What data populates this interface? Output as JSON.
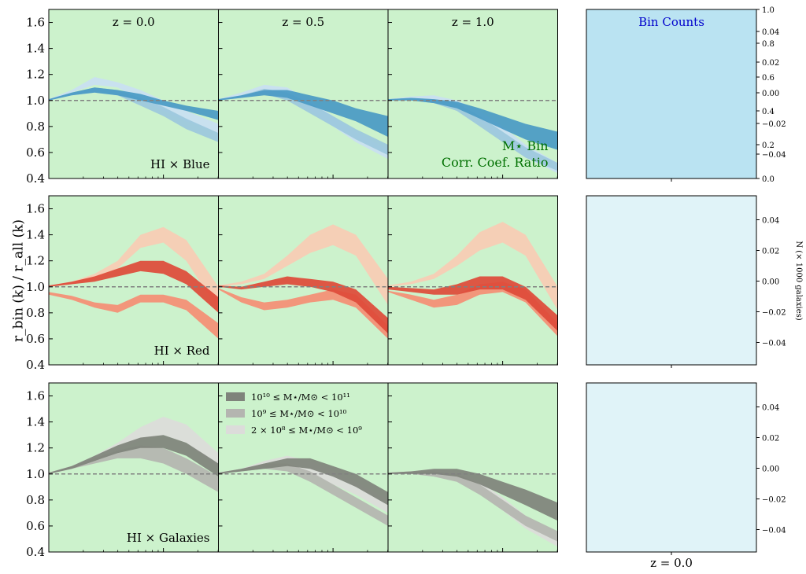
{
  "chart_data": {
    "type": "area",
    "ylabel": "r_bin (k) / r_all (k)",
    "ylim": [
      0.4,
      1.7
    ],
    "yticks": [
      0.4,
      0.6,
      0.8,
      1.0,
      1.2,
      1.4,
      1.6
    ],
    "ytick_labels": [
      "0.4",
      "0.6",
      "0.8",
      "1.0",
      "1.2",
      "1.4",
      "1.6"
    ],
    "xscale": "log",
    "xlim_log10": [
      -1.0,
      0.48
    ],
    "reference_line": 1.0,
    "panel_background": "#ccf2cc",
    "columns": [
      "z = 0.0",
      "z = 0.5",
      "z = 1.0"
    ],
    "annotation_title": "M⋆ Bin",
    "annotation_subtitle": "Corr. Coef. Ratio",
    "annotation_color": "#007000",
    "legend": [
      "10¹⁰ ≤ M⋆/M⊙ < 10¹¹",
      "10⁹ ≤ M⋆/M⊙ < 10¹⁰",
      "2 × 10⁸ ≤ M⋆/M⊙ < 10⁹"
    ],
    "rows": [
      {
        "label": "HI × Blue",
        "colors": [
          "#4a9ac4",
          "#9cc8dd",
          "#c9e0f2"
        ],
        "panels": [
          {
            "x": [
              -1.0,
              -0.8,
              -0.6,
              -0.4,
              -0.2,
              0.0,
              0.2,
              0.48
            ],
            "series": [
              {
                "lo": [
                  1.0,
                  1.04,
                  1.06,
                  1.04,
                  1.0,
                  0.96,
                  0.92,
                  0.85
                ],
                "hi": [
                  1.01,
                  1.06,
                  1.1,
                  1.08,
                  1.05,
                  1.0,
                  0.96,
                  0.92
                ]
              },
              {
                "lo": [
                  1.0,
                  1.04,
                  1.06,
                  1.04,
                  0.96,
                  0.88,
                  0.78,
                  0.68
                ],
                "hi": [
                  1.01,
                  1.06,
                  1.1,
                  1.08,
                  1.02,
                  0.95,
                  0.86,
                  0.75
                ]
              },
              {
                "lo": [
                  1.0,
                  1.06,
                  1.12,
                  1.1,
                  1.0,
                  0.92,
                  0.84,
                  0.75
                ],
                "hi": [
                  1.01,
                  1.08,
                  1.18,
                  1.14,
                  1.08,
                  1.0,
                  0.92,
                  0.82
                ]
              }
            ]
          },
          {
            "x": [
              -1.0,
              -0.8,
              -0.6,
              -0.4,
              -0.2,
              0.0,
              0.2,
              0.48
            ],
            "series": [
              {
                "lo": [
                  1.0,
                  1.02,
                  1.04,
                  1.02,
                  0.96,
                  0.9,
                  0.84,
                  0.72
                ],
                "hi": [
                  1.01,
                  1.04,
                  1.08,
                  1.08,
                  1.04,
                  1.0,
                  0.94,
                  0.88
                ]
              },
              {
                "lo": [
                  1.0,
                  1.02,
                  1.05,
                  1.0,
                  0.9,
                  0.8,
                  0.7,
                  0.58
                ],
                "hi": [
                  1.01,
                  1.04,
                  1.09,
                  1.06,
                  0.98,
                  0.88,
                  0.78,
                  0.66
                ]
              },
              {
                "lo": [
                  1.0,
                  1.04,
                  1.08,
                  1.04,
                  0.92,
                  0.8,
                  0.68,
                  0.55
                ],
                "hi": [
                  1.01,
                  1.06,
                  1.12,
                  1.1,
                  1.0,
                  0.88,
                  0.76,
                  0.62
                ]
              }
            ]
          },
          {
            "x": [
              -1.0,
              -0.8,
              -0.6,
              -0.4,
              -0.2,
              0.0,
              0.2,
              0.48
            ],
            "series": [
              {
                "lo": [
                  1.0,
                  1.0,
                  0.98,
                  0.94,
                  0.86,
                  0.78,
                  0.7,
                  0.62
                ],
                "hi": [
                  1.01,
                  1.02,
                  1.01,
                  0.99,
                  0.94,
                  0.88,
                  0.82,
                  0.76
                ]
              },
              {
                "lo": [
                  1.0,
                  1.0,
                  0.98,
                  0.92,
                  0.8,
                  0.68,
                  0.56,
                  0.46
                ],
                "hi": [
                  1.01,
                  1.02,
                  1.01,
                  0.98,
                  0.88,
                  0.76,
                  0.64,
                  0.52
                ]
              },
              {
                "lo": [
                  1.0,
                  1.01,
                  1.0,
                  0.96,
                  0.84,
                  0.7,
                  0.56,
                  0.44
                ],
                "hi": [
                  1.01,
                  1.03,
                  1.04,
                  1.0,
                  0.92,
                  0.8,
                  0.66,
                  0.52
                ]
              }
            ]
          }
        ]
      },
      {
        "label": "HI × Red",
        "colors": [
          "#de4a38",
          "#f58e74",
          "#f9ccb4"
        ],
        "panels": [
          {
            "x": [
              -1.0,
              -0.8,
              -0.6,
              -0.4,
              -0.2,
              0.0,
              0.2,
              0.48
            ],
            "series": [
              {
                "lo": [
                  1.0,
                  1.02,
                  1.04,
                  1.08,
                  1.12,
                  1.1,
                  1.02,
                  0.8
                ],
                "hi": [
                  1.01,
                  1.04,
                  1.08,
                  1.14,
                  1.2,
                  1.2,
                  1.12,
                  0.92
                ]
              },
              {
                "lo": [
                  0.94,
                  0.9,
                  0.84,
                  0.8,
                  0.88,
                  0.88,
                  0.82,
                  0.6
                ],
                "hi": [
                  0.96,
                  0.93,
                  0.88,
                  0.86,
                  0.94,
                  0.94,
                  0.9,
                  0.72
                ]
              },
              {
                "lo": [
                  1.0,
                  1.02,
                  1.06,
                  1.14,
                  1.3,
                  1.34,
                  1.2,
                  0.82
                ],
                "hi": [
                  1.01,
                  1.04,
                  1.1,
                  1.2,
                  1.4,
                  1.46,
                  1.36,
                  1.0
                ]
              }
            ]
          },
          {
            "x": [
              -1.0,
              -0.8,
              -0.6,
              -0.4,
              -0.2,
              0.0,
              0.2,
              0.48
            ],
            "series": [
              {
                "lo": [
                  1.0,
                  0.98,
                  1.0,
                  1.02,
                  1.0,
                  0.96,
                  0.88,
                  0.64
                ],
                "hi": [
                  1.01,
                  1.0,
                  1.04,
                  1.08,
                  1.06,
                  1.04,
                  0.98,
                  0.76
                ]
              },
              {
                "lo": [
                  0.98,
                  0.88,
                  0.82,
                  0.84,
                  0.88,
                  0.9,
                  0.84,
                  0.6
                ],
                "hi": [
                  0.99,
                  0.92,
                  0.88,
                  0.9,
                  0.94,
                  0.98,
                  0.94,
                  0.7
                ]
              },
              {
                "lo": [
                  1.0,
                  1.02,
                  1.06,
                  1.16,
                  1.26,
                  1.32,
                  1.24,
                  0.86
                ],
                "hi": [
                  1.01,
                  1.04,
                  1.1,
                  1.24,
                  1.4,
                  1.48,
                  1.4,
                  1.06
                ]
              }
            ]
          },
          {
            "x": [
              -1.0,
              -0.8,
              -0.6,
              -0.4,
              -0.2,
              0.0,
              0.2,
              0.48
            ],
            "series": [
              {
                "lo": [
                  0.98,
                  0.96,
                  0.94,
                  0.94,
                  0.98,
                  0.98,
                  0.9,
                  0.66
                ],
                "hi": [
                  1.0,
                  0.99,
                  0.98,
                  1.02,
                  1.08,
                  1.08,
                  1.0,
                  0.78
                ]
              },
              {
                "lo": [
                  0.96,
                  0.9,
                  0.84,
                  0.86,
                  0.94,
                  0.96,
                  0.88,
                  0.62
                ],
                "hi": [
                  0.97,
                  0.94,
                  0.9,
                  0.94,
                  1.02,
                  1.04,
                  0.98,
                  0.72
                ]
              },
              {
                "lo": [
                  1.0,
                  1.02,
                  1.06,
                  1.16,
                  1.28,
                  1.34,
                  1.24,
                  0.82
                ],
                "hi": [
                  1.01,
                  1.04,
                  1.1,
                  1.24,
                  1.42,
                  1.5,
                  1.4,
                  1.0
                ]
              }
            ]
          }
        ]
      },
      {
        "label": "HI × Galaxies",
        "colors": [
          "#7f837b",
          "#b4b5b0",
          "#dcdcda"
        ],
        "panels": [
          {
            "x": [
              -1.0,
              -0.8,
              -0.6,
              -0.4,
              -0.2,
              0.0,
              0.2,
              0.48
            ],
            "series": [
              {
                "lo": [
                  1.0,
                  1.04,
                  1.1,
                  1.16,
                  1.2,
                  1.2,
                  1.14,
                  0.98
                ],
                "hi": [
                  1.01,
                  1.06,
                  1.14,
                  1.22,
                  1.28,
                  1.3,
                  1.24,
                  1.08
                ]
              },
              {
                "lo": [
                  1.0,
                  1.04,
                  1.08,
                  1.12,
                  1.12,
                  1.08,
                  1.0,
                  0.86
                ],
                "hi": [
                  1.01,
                  1.06,
                  1.12,
                  1.18,
                  1.22,
                  1.2,
                  1.12,
                  0.98
                ]
              },
              {
                "lo": [
                  1.0,
                  1.04,
                  1.1,
                  1.18,
                  1.26,
                  1.3,
                  1.24,
                  1.04
                ],
                "hi": [
                  1.01,
                  1.06,
                  1.14,
                  1.24,
                  1.36,
                  1.44,
                  1.38,
                  1.16
                ]
              }
            ]
          },
          {
            "x": [
              -1.0,
              -0.8,
              -0.6,
              -0.4,
              -0.2,
              0.0,
              0.2,
              0.48
            ],
            "series": [
              {
                "lo": [
                  1.0,
                  1.02,
                  1.04,
                  1.06,
                  1.04,
                  0.98,
                  0.9,
                  0.76
                ],
                "hi": [
                  1.01,
                  1.04,
                  1.08,
                  1.12,
                  1.12,
                  1.06,
                  1.0,
                  0.86
                ]
              },
              {
                "lo": [
                  1.0,
                  1.02,
                  1.04,
                  1.02,
                  0.94,
                  0.84,
                  0.74,
                  0.6
                ],
                "hi": [
                  1.01,
                  1.04,
                  1.08,
                  1.08,
                  1.02,
                  0.92,
                  0.82,
                  0.68
                ]
              },
              {
                "lo": [
                  1.0,
                  1.02,
                  1.06,
                  1.06,
                  1.0,
                  0.92,
                  0.84,
                  0.7
                ],
                "hi": [
                  1.01,
                  1.04,
                  1.1,
                  1.14,
                  1.1,
                  1.02,
                  0.94,
                  0.8
                ]
              }
            ]
          },
          {
            "x": [
              -1.0,
              -0.8,
              -0.6,
              -0.4,
              -0.2,
              0.0,
              0.2,
              0.48
            ],
            "series": [
              {
                "lo": [
                  1.0,
                  1.0,
                  1.0,
                  0.98,
                  0.92,
                  0.84,
                  0.76,
                  0.64
                ],
                "hi": [
                  1.01,
                  1.02,
                  1.04,
                  1.04,
                  1.0,
                  0.94,
                  0.88,
                  0.78
                ]
              },
              {
                "lo": [
                  1.0,
                  1.0,
                  0.98,
                  0.94,
                  0.84,
                  0.72,
                  0.6,
                  0.48
                ],
                "hi": [
                  1.01,
                  1.02,
                  1.02,
                  1.0,
                  0.92,
                  0.8,
                  0.68,
                  0.56
                ]
              },
              {
                "lo": [
                  1.0,
                  1.0,
                  1.0,
                  0.96,
                  0.86,
                  0.72,
                  0.58,
                  0.44
                ],
                "hi": [
                  1.01,
                  1.02,
                  1.04,
                  1.02,
                  0.94,
                  0.82,
                  0.68,
                  0.52
                ]
              }
            ]
          }
        ]
      }
    ],
    "side_panels": {
      "title": "Bin Counts",
      "title_color": "#0000cc",
      "top_background": "#bae3f2",
      "background": "#e0f3f8",
      "xtick_label": "z = 0.0",
      "right_label": "N (× 1000 galaxies)",
      "top_inner_ticks": [
        "0.0",
        "0.2",
        "0.4",
        "0.6",
        "0.8",
        "1.0"
      ],
      "top_outer_ticks": [
        "0.04",
        "0.02",
        "0.00",
        "−0.02",
        "−0.04"
      ],
      "lower_ticks": [
        "0.04",
        "0.02",
        "0.00",
        "−0.02",
        "−0.04"
      ]
    }
  }
}
